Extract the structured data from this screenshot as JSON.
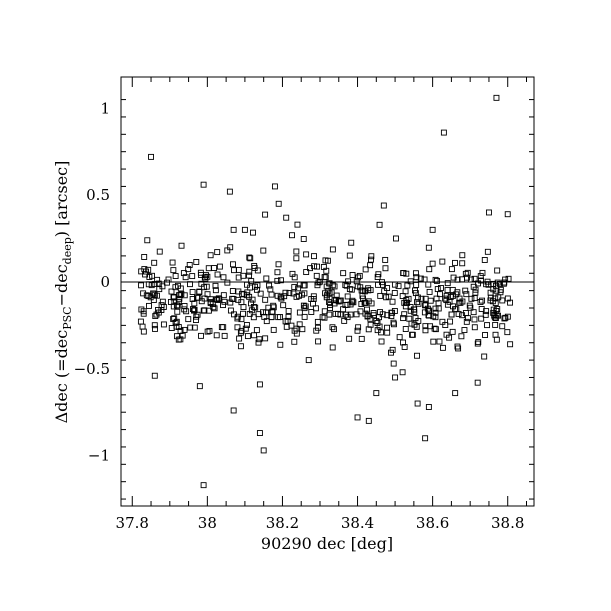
{
  "chart_data": {
    "type": "scatter",
    "title": "",
    "xlabel": "90290 dec [deg]",
    "ylabel_parts": {
      "prefix": "Δdec (=dec",
      "sub1": "PSC",
      "mid": "−dec",
      "sub2": "deep",
      "suffix": ") [arcsec]"
    },
    "xlim": [
      37.77,
      38.87
    ],
    "ylim": [
      -1.29,
      1.18
    ],
    "x_ticks": [
      37.8,
      38.0,
      38.2,
      38.4,
      38.6,
      38.8
    ],
    "x_tick_labels": [
      "37.8",
      "38",
      "38.2",
      "38.4",
      "38.6",
      "38.8"
    ],
    "y_ticks": [
      -1.0,
      -0.5,
      0.0,
      0.5,
      1.0
    ],
    "y_tick_labels": [
      "−1",
      "−0.5",
      "0",
      "0.5",
      "1"
    ],
    "reference_line_y": 0,
    "marker": "open-square",
    "grid": false,
    "outliers": [
      {
        "x": 37.85,
        "y": 0.72
      },
      {
        "x": 37.99,
        "y": 0.56
      },
      {
        "x": 38.06,
        "y": 0.52
      },
      {
        "x": 38.18,
        "y": 0.55
      },
      {
        "x": 38.47,
        "y": 0.44
      },
      {
        "x": 38.63,
        "y": 0.86
      },
      {
        "x": 38.77,
        "y": 1.06
      },
      {
        "x": 38.75,
        "y": 0.4
      },
      {
        "x": 38.8,
        "y": 0.39
      },
      {
        "x": 37.99,
        "y": -1.17
      },
      {
        "x": 38.15,
        "y": -0.97
      },
      {
        "x": 38.14,
        "y": -0.87
      },
      {
        "x": 38.58,
        "y": -0.9
      },
      {
        "x": 38.4,
        "y": -0.78
      },
      {
        "x": 38.43,
        "y": -0.8
      },
      {
        "x": 38.56,
        "y": -0.7
      },
      {
        "x": 38.59,
        "y": -0.72
      },
      {
        "x": 38.07,
        "y": -0.74
      },
      {
        "x": 38.14,
        "y": -0.59
      },
      {
        "x": 37.98,
        "y": -0.6
      },
      {
        "x": 37.86,
        "y": -0.54
      },
      {
        "x": 38.07,
        "y": 0.3
      },
      {
        "x": 38.1,
        "y": 0.3
      },
      {
        "x": 38.24,
        "y": 0.33
      },
      {
        "x": 38.6,
        "y": 0.3
      },
      {
        "x": 37.84,
        "y": 0.24
      },
      {
        "x": 38.19,
        "y": 0.45
      },
      {
        "x": 38.21,
        "y": 0.37
      },
      {
        "x": 38.5,
        "y": -0.55
      },
      {
        "x": 38.52,
        "y": -0.52
      },
      {
        "x": 38.66,
        "y": -0.64
      },
      {
        "x": 38.72,
        "y": -0.58
      },
      {
        "x": 38.45,
        "y": -0.64
      },
      {
        "x": 38.27,
        "y": -0.45
      }
    ],
    "cluster_points": 640,
    "cluster": {
      "x_range": [
        37.82,
        38.81
      ],
      "y_center": -0.12,
      "y_spread": 0.12
    }
  }
}
